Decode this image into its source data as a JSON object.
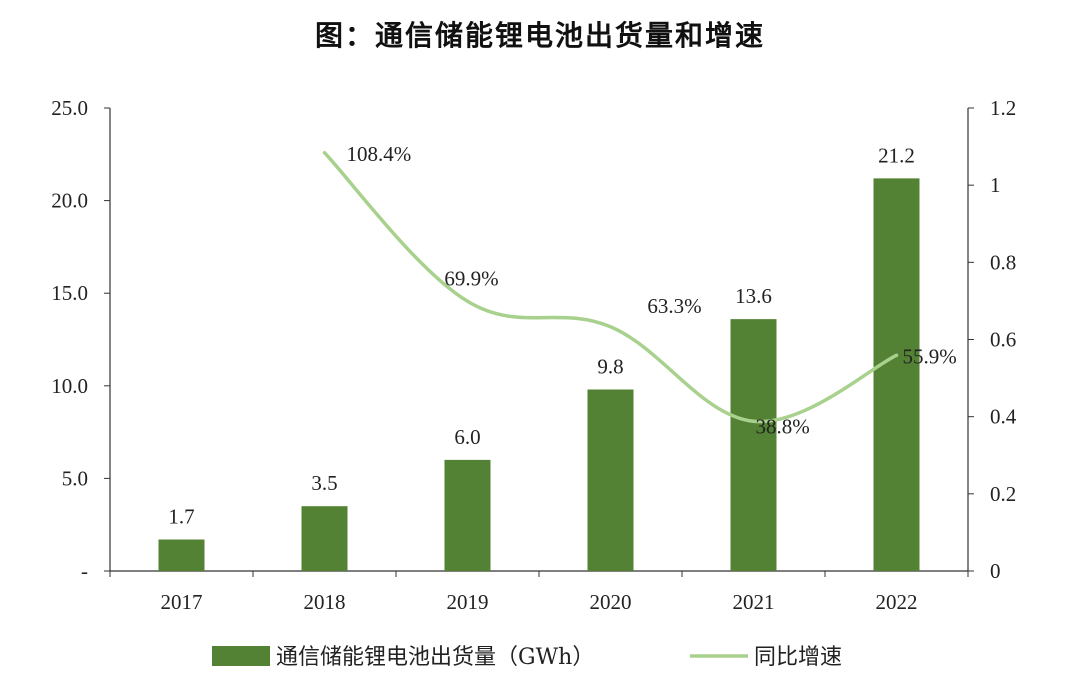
{
  "chart_data": {
    "type": "bar",
    "title": "图：通信储能锂电池出货量和增速",
    "categories": [
      "2017",
      "2018",
      "2019",
      "2020",
      "2021",
      "2022"
    ],
    "series": [
      {
        "name": "通信储能锂电池出货量（GWh）",
        "type": "bar",
        "axis": "left",
        "color": "#548235",
        "values": [
          1.7,
          3.5,
          6.0,
          9.8,
          13.6,
          21.2
        ],
        "labels": [
          "1.7",
          "3.5",
          "6.0",
          "9.8",
          "13.6",
          "21.2"
        ]
      },
      {
        "name": "同比增速",
        "type": "line",
        "axis": "right",
        "color": "#a9d18e",
        "values": [
          null,
          1.084,
          0.699,
          0.633,
          0.388,
          0.559
        ],
        "labels": [
          "",
          "108.4%",
          "69.9%",
          "63.3%",
          "38.8%",
          "55.9%"
        ]
      }
    ],
    "y_left": {
      "min": 0,
      "max": 25,
      "ticks": [
        0,
        5,
        10,
        15,
        20,
        25
      ],
      "tick_labels": [
        "-",
        "5.0",
        "10.0",
        "15.0",
        "20.0",
        "25.0"
      ]
    },
    "y_right": {
      "min": 0,
      "max": 1.2,
      "ticks": [
        0,
        0.2,
        0.4,
        0.6,
        0.8,
        1.0,
        1.2
      ],
      "tick_labels": [
        "0",
        "0.2",
        "0.4",
        "0.6",
        "0.8",
        "1",
        "1.2"
      ]
    },
    "grid": false,
    "legend": "bottom"
  }
}
